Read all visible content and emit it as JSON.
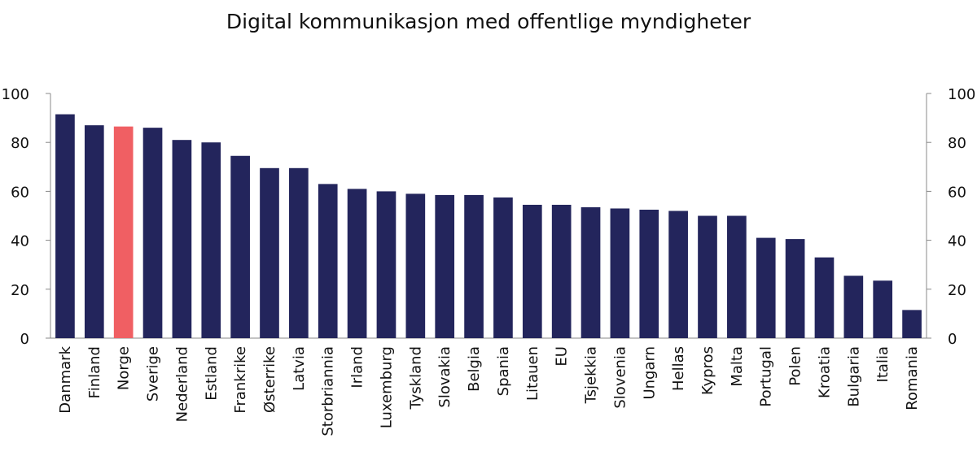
{
  "chart_data": {
    "type": "bar",
    "title": "Digital kommunikasjon med offentlige myndigheter",
    "categories": [
      "Danmark",
      "Finland",
      "Norge",
      "Sverige",
      "Nederland",
      "Estland",
      "Frankrike",
      "Østerrike",
      "Latvia",
      "Storbriannia",
      "Irland",
      "Luxemburg",
      "Tyskland",
      "Slovakia",
      "Belgia",
      "Spania",
      "Litauen",
      "EU",
      "Tsjekkia",
      "Slovenia",
      "Ungarn",
      "Hellas",
      "Kypros",
      "Malta",
      "Portugal",
      "Polen",
      "Kroatia",
      "Bulgaria",
      "Italia",
      "Romania"
    ],
    "values": [
      91.5,
      87,
      86.5,
      86,
      81,
      80,
      74.5,
      69.5,
      69.5,
      63,
      61,
      60,
      59,
      58.5,
      58.5,
      57.5,
      54.5,
      54.5,
      53.5,
      53,
      52.5,
      52,
      50,
      50,
      41,
      40.5,
      33,
      25.5,
      23.5,
      11.5
    ],
    "highlight": "Norge",
    "ylim": [
      0,
      100
    ],
    "yticks": [
      0,
      20,
      40,
      60,
      80,
      100
    ],
    "xlabel": "",
    "ylabel": "",
    "grid": false,
    "legend": "none",
    "colors": {
      "bar": "#23255c",
      "highlight": "#f05f63",
      "axis": "#888888"
    }
  }
}
